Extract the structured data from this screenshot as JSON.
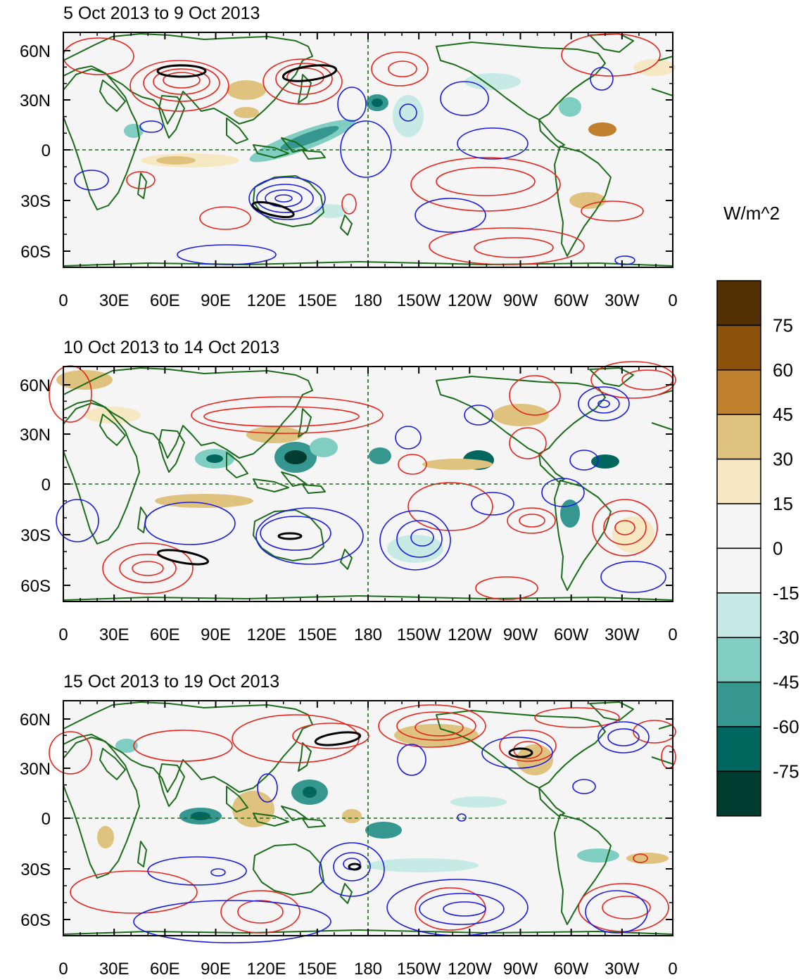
{
  "figure": {
    "panels": [
      {
        "title": "5 Oct 2013 to 9 Oct 2013"
      },
      {
        "title": "10 Oct 2013 to 14 Oct 2013"
      },
      {
        "title": "15 Oct 2013 to 19 Oct 2013"
      }
    ],
    "lat_ticks": [
      "60N",
      "30N",
      "0",
      "30S",
      "60S"
    ],
    "lon_ticks": [
      "0",
      "30E",
      "60E",
      "90E",
      "120E",
      "150E",
      "180",
      "150W",
      "120W",
      "90W",
      "60W",
      "30W",
      "0"
    ],
    "colorbar": {
      "units": "W/m^2",
      "labels": [
        "75",
        "60",
        "45",
        "30",
        "15",
        "0",
        "-15",
        "-30",
        "-45",
        "-60",
        "-75"
      ],
      "colors": [
        "#543005",
        "#8c510a",
        "#bf812d",
        "#dfc27d",
        "#f6e8c3",
        "#f5f5f5",
        "#f5f5f5",
        "#c7eae5",
        "#80cdc1",
        "#35978f",
        "#01665e",
        "#003c30"
      ]
    },
    "colors": {
      "coast": "#1a6b1a",
      "positive_contour": "#e8231c",
      "negative_contour": "#1a1ae6",
      "significance": "#000000",
      "ocean": "#f5f5f5"
    }
  }
}
